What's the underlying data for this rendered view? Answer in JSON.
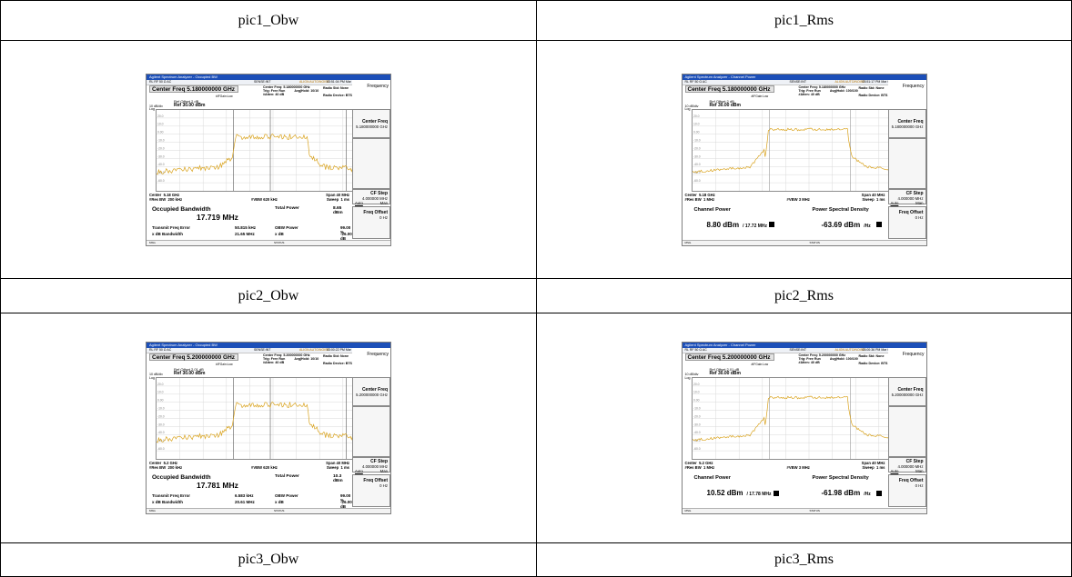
{
  "table": {
    "caption_rows": [
      [
        "pic1_Obw",
        "pic1_Rms"
      ],
      [
        "pic2_Obw",
        "pic2_Rms"
      ],
      [
        "pic3_Obw",
        "pic3_Rms"
      ]
    ]
  },
  "common": {
    "window_title_obw": "Agilent Spectrum Analyzer - Occupied BW",
    "window_title_rms": "Agilent Spectrum Analyzer - Channel Power",
    "status_left": "RL      RF     50 Ω   AC",
    "status_mid": "SENSE:INT",
    "status_right": "ALIGN AUTO/NOISE",
    "trig": "Trig: Free Run",
    "atten": "#Atten: 40 dB",
    "pfgain": "#IFGain:Low",
    "radio_std": "Radio Std: None",
    "radio_dev": "Radio Device: BTS",
    "ref_level": "Ref 30.00 dBm",
    "scale_div": "10 dB/div",
    "scale_log": "Log",
    "y_ticks": [
      "20.0",
      "10.0",
      "0.00",
      "-10.0",
      "-20.0",
      "-30.0",
      "-40.0",
      "-50.0",
      "-60.0"
    ],
    "span": "Span 40 MHz",
    "sweep": "Sweep  1 ms",
    "msg": "MSG",
    "status": "STATUS",
    "softkeys": {
      "frequency": "Frequency",
      "center_freq": "Center Freq",
      "cf_step": "CF Step",
      "cf_step_val": "4.000000 MHz",
      "auto": "Auto",
      "man": "Man",
      "freq_offset": "Freq Offset",
      "freq_offset_val": "0 Hz"
    },
    "trace_color": "#d9a21b"
  },
  "pic1_obw": {
    "time": "03:51:04 PM Mar 06, 2023",
    "center_freq_label": "Center Freq 5.180000000 GHz",
    "center_freq_info": "Center Freq: 5.180000000 GHz",
    "avg_hold": "Avg|Hold: 10/10",
    "ref_offset": "Ref Offset 2 dB",
    "center": "Center  5.18 GHz",
    "res_bw": "#Res BW  200 kHz",
    "vbw": "#VBW  620 kHz",
    "softkey_cf_val": "5.180000000 GHz",
    "occupied_bw_label": "Occupied Bandwidth",
    "occupied_bw": "17.719 MHz",
    "total_power_label": "Total Power",
    "total_power": "8.65 dBm",
    "tfe_label": "Transmit Freq Error",
    "tfe": "50.815 kHz",
    "obw_power_label": "OBW Power",
    "obw_power": "99.00 %",
    "xdb_bw_label": "x dB Bandwidth",
    "xdb_bw": "21.65 MHz",
    "xdb_label": "x dB",
    "xdb": "-26.00 dB"
  },
  "pic1_rms": {
    "time": "03:51:17 PM Mar 06, 2023",
    "center_freq_label": "Center Freq 5.180000000 GHz",
    "center_freq_info": "Center Freq: 5.180000000 GHz",
    "avg_hold": "Avg|Hold: 100/100",
    "ref_offset": "Ref Offset 2 dB",
    "center": "Center  5.18 GHz",
    "res_bw": "#Res BW  1 MHz",
    "vbw": "#VBW  3 MHz",
    "softkey_cf_val": "5.180000000 GHz",
    "channel_power_label": "Channel Power",
    "psd_label": "Power Spectral Density",
    "channel_power": "8.80 dBm",
    "channel_bw": "/ 17.72 MHz",
    "psd": "-63.69 dBm",
    "psd_unit": "/Hz"
  },
  "pic2_obw": {
    "time": "03:00:22 PM Mar 06, 2023",
    "center_freq_label": "Center Freq 5.200000000 GHz",
    "center_freq_info": "Center Freq: 5.200000000 GHz",
    "avg_hold": "Avg|Hold: 10/10",
    "ref_offset": "Ref Offset 2.01 dB",
    "center": "Center  5.2 GHz",
    "res_bw": "#Res BW  200 kHz",
    "vbw": "#VBW  620 kHz",
    "softkey_cf_val": "5.200000000 GHz",
    "occupied_bw_label": "Occupied Bandwidth",
    "occupied_bw": "17.781 MHz",
    "total_power_label": "Total Power",
    "total_power": "10.3 dBm",
    "tfe_label": "Transmit Freq Error",
    "tfe": "6.583 kHz",
    "obw_power_label": "OBW Power",
    "obw_power": "99.00 %",
    "xdb_bw_label": "x dB Bandwidth",
    "xdb_bw": "20.61 MHz",
    "xdb_label": "x dB",
    "xdb": "-26.00 dB"
  },
  "pic2_rms": {
    "time": "03:00:36 PM Mar 06, 2023",
    "center_freq_label": "Center Freq 5.200000000 GHz",
    "center_freq_info": "Center Freq: 5.200000000 GHz",
    "avg_hold": "Avg|Hold: 100/100",
    "ref_offset": "Ref Offset 2.01 dB",
    "center": "Center  5.2 GHz",
    "res_bw": "#Res BW  1 MHz",
    "vbw": "#VBW  3 MHz",
    "softkey_cf_val": "5.200000000 GHz",
    "channel_power_label": "Channel Power",
    "psd_label": "Power Spectral Density",
    "channel_power": "10.52 dBm",
    "channel_bw": "/ 17.78 MHz",
    "psd": "-61.98 dBm",
    "psd_unit": "/Hz"
  }
}
